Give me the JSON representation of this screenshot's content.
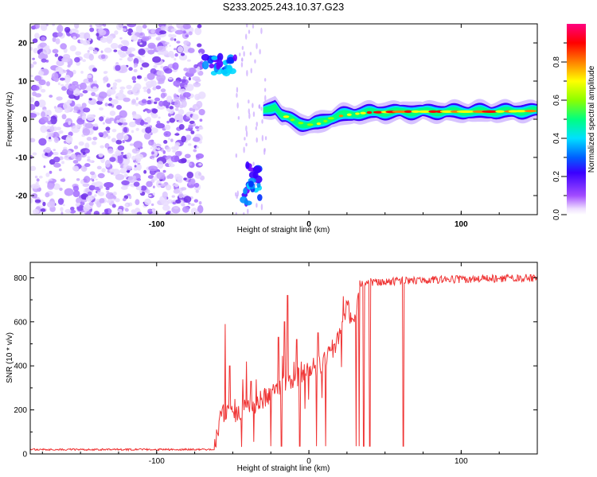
{
  "title": "S233.2025.243.10.37.G23",
  "chart_data": [
    {
      "type": "heatmap",
      "xlabel": "Height of straight line (km)",
      "ylabel": "Frequency (Hz)",
      "xlim": [
        -183,
        150
      ],
      "ylim": [
        -25,
        25
      ],
      "xticks": [
        -100,
        0,
        100
      ],
      "yticks": [
        -20,
        -10,
        0,
        10,
        20
      ],
      "colorbar": {
        "label": "Normalized spectral amplitude",
        "ticks": [
          0.0,
          0.2,
          0.4,
          0.6,
          0.8
        ],
        "range": [
          0,
          1
        ],
        "colormap": [
          "#ffffff",
          "#a24cff",
          "#3a00ff",
          "#0060ff",
          "#00e0ff",
          "#00ff80",
          "#8cff00",
          "#ffff00",
          "#ff8000",
          "#ff0000",
          "#ff0080"
        ]
      },
      "features": {
        "noise_region_x": [
          -183,
          -70
        ],
        "upper_cluster": {
          "x": [
            -68,
            -48
          ],
          "y": [
            12,
            17
          ]
        },
        "lower_cluster": {
          "x": [
            -43,
            -31
          ],
          "y": [
            -22,
            -11
          ]
        },
        "signal_band": [
          [
            -30,
            2
          ],
          [
            -22,
            3.5
          ],
          [
            -18,
            1
          ],
          [
            -12,
            0
          ],
          [
            -6,
            -1
          ],
          [
            0,
            -1.5
          ],
          [
            6,
            -1
          ],
          [
            12,
            0
          ],
          [
            20,
            1
          ],
          [
            30,
            1.5
          ],
          [
            40,
            1.8
          ],
          [
            60,
            2
          ],
          [
            80,
            2
          ],
          [
            100,
            2
          ],
          [
            120,
            2
          ],
          [
            150,
            2.2
          ]
        ]
      }
    },
    {
      "type": "line",
      "xlabel": "Height of straight line (km)",
      "ylabel": "SNR (10 * v/v)",
      "xlim": [
        -183,
        150
      ],
      "ylim": [
        0,
        870
      ],
      "xticks": [
        -100,
        0,
        100
      ],
      "yticks": [
        0,
        200,
        400,
        600,
        800
      ],
      "color": "#ef3434",
      "profile": [
        [
          -183,
          20
        ],
        [
          -62,
          20
        ],
        [
          -58,
          170
        ],
        [
          -45,
          190
        ],
        [
          -30,
          250
        ],
        [
          -10,
          340
        ],
        [
          10,
          420
        ],
        [
          20,
          520
        ],
        [
          25,
          680
        ],
        [
          28,
          600
        ],
        [
          31,
          620
        ],
        [
          33,
          770
        ],
        [
          40,
          780
        ],
        [
          80,
          790
        ],
        [
          150,
          800
        ]
      ],
      "spikes": [
        [
          -55,
          590
        ],
        [
          -52,
          400
        ],
        [
          -41,
          420
        ],
        [
          -38,
          330
        ],
        [
          -20,
          530
        ],
        [
          -16,
          600
        ],
        [
          -14,
          720
        ],
        [
          -8,
          520
        ],
        [
          6,
          550
        ],
        [
          17,
          500
        ],
        [
          22,
          600
        ],
        [
          25,
          690
        ]
      ],
      "dropouts": [
        -25,
        -18,
        -6,
        5,
        11,
        31,
        33,
        36,
        40,
        62
      ]
    }
  ]
}
